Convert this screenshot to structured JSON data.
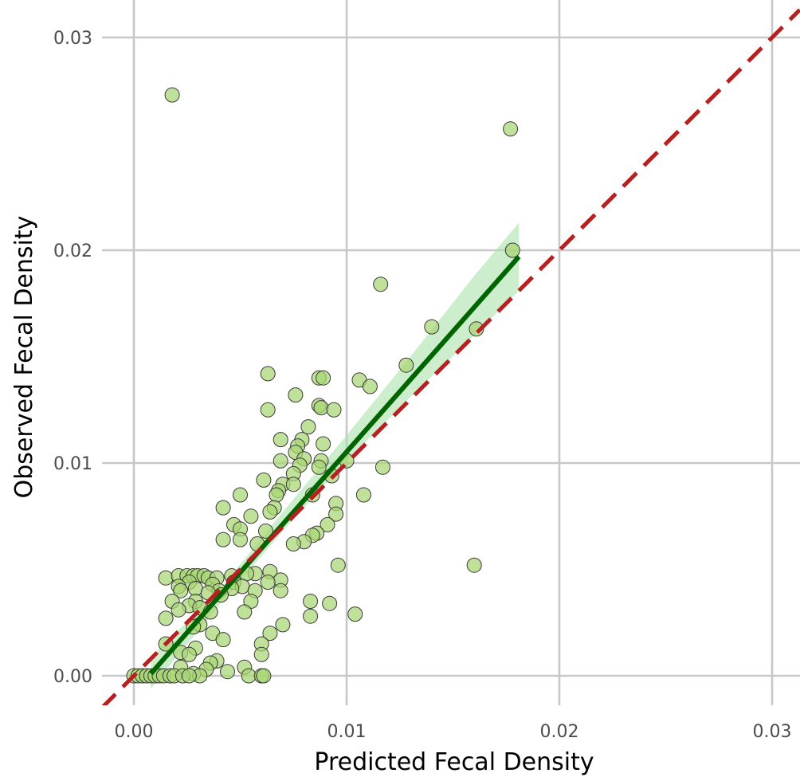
{
  "chart_data": {
    "type": "scatter",
    "title": "",
    "xlabel": "Predicted Fecal Density",
    "ylabel": "Observed Fecal Density",
    "xlim": [
      -0.0015,
      0.0313
    ],
    "ylim": [
      -0.0015,
      0.0313
    ],
    "x_ticks": [
      0.0,
      0.01,
      0.02,
      0.03
    ],
    "y_ticks": [
      0.0,
      0.01,
      0.02,
      0.03
    ],
    "x_tick_labels": [
      "0.00",
      "0.01",
      "0.02",
      "0.03"
    ],
    "y_tick_labels": [
      "0.00",
      "0.01",
      "0.02",
      "0.03"
    ],
    "grid": true,
    "colors": {
      "point_fill": "#a8d572",
      "point_stroke": "#3a3a3a",
      "fit_line": "#006400",
      "fit_band": "#a3e0a3",
      "identity_line": "#b22222",
      "grid": "#c8c8c8"
    },
    "points": [
      [
        0.0018,
        0.0273
      ],
      [
        0.0177,
        0.0257
      ],
      [
        0.0178,
        0.02
      ],
      [
        0.0116,
        0.0184
      ],
      [
        0.014,
        0.0164
      ],
      [
        0.0161,
        0.0163
      ],
      [
        0.0128,
        0.0146
      ],
      [
        0.0063,
        0.0142
      ],
      [
        0.0087,
        0.014
      ],
      [
        0.0089,
        0.014
      ],
      [
        0.0106,
        0.0139
      ],
      [
        0.0111,
        0.0136
      ],
      [
        0.0076,
        0.0132
      ],
      [
        0.0087,
        0.0127
      ],
      [
        0.0088,
        0.0126
      ],
      [
        0.0063,
        0.0125
      ],
      [
        0.0094,
        0.0125
      ],
      [
        0.0082,
        0.0117
      ],
      [
        0.0079,
        0.0111
      ],
      [
        0.0069,
        0.0111
      ],
      [
        0.0089,
        0.0109
      ],
      [
        0.0077,
        0.0108
      ],
      [
        0.0076,
        0.0105
      ],
      [
        0.008,
        0.0102
      ],
      [
        0.0069,
        0.0101
      ],
      [
        0.0088,
        0.0101
      ],
      [
        0.01,
        0.0101
      ],
      [
        0.0078,
        0.0099
      ],
      [
        0.0087,
        0.0098
      ],
      [
        0.0117,
        0.0098
      ],
      [
        0.0075,
        0.0095
      ],
      [
        0.0093,
        0.0094
      ],
      [
        0.0061,
        0.0092
      ],
      [
        0.007,
        0.009
      ],
      [
        0.0075,
        0.009
      ],
      [
        0.0068,
        0.0087
      ],
      [
        0.0067,
        0.0085
      ],
      [
        0.005,
        0.0085
      ],
      [
        0.0084,
        0.0085
      ],
      [
        0.0108,
        0.0085
      ],
      [
        0.0095,
        0.0081
      ],
      [
        0.0042,
        0.0079
      ],
      [
        0.0066,
        0.0079
      ],
      [
        0.0064,
        0.0077
      ],
      [
        0.0095,
        0.0076
      ],
      [
        0.0055,
        0.0075
      ],
      [
        0.0091,
        0.0071
      ],
      [
        0.0047,
        0.0071
      ],
      [
        0.005,
        0.0069
      ],
      [
        0.0062,
        0.0068
      ],
      [
        0.0086,
        0.0067
      ],
      [
        0.0084,
        0.0066
      ],
      [
        0.005,
        0.0064
      ],
      [
        0.0042,
        0.0064
      ],
      [
        0.008,
        0.0063
      ],
      [
        0.0058,
        0.0062
      ],
      [
        0.0075,
        0.0062
      ],
      [
        0.016,
        0.0052
      ],
      [
        0.0096,
        0.0052
      ],
      [
        0.0064,
        0.0049
      ],
      [
        0.0057,
        0.0048
      ],
      [
        0.0053,
        0.0048
      ],
      [
        0.0046,
        0.0047
      ],
      [
        0.0015,
        0.0046
      ],
      [
        0.0021,
        0.0047
      ],
      [
        0.0025,
        0.0047
      ],
      [
        0.0028,
        0.0047
      ],
      [
        0.003,
        0.0047
      ],
      [
        0.0033,
        0.0047
      ],
      [
        0.0035,
        0.0046
      ],
      [
        0.0039,
        0.0046
      ],
      [
        0.0069,
        0.0045
      ],
      [
        0.0047,
        0.0044
      ],
      [
        0.0063,
        0.0044
      ],
      [
        0.0026,
        0.0044
      ],
      [
        0.0037,
        0.0043
      ],
      [
        0.0051,
        0.0042
      ],
      [
        0.0046,
        0.0041
      ],
      [
        0.0021,
        0.0042
      ],
      [
        0.0029,
        0.0041
      ],
      [
        0.0022,
        0.004
      ],
      [
        0.0069,
        0.004
      ],
      [
        0.004,
        0.004
      ],
      [
        0.0057,
        0.004
      ],
      [
        0.0035,
        0.0039
      ],
      [
        0.0041,
        0.0038
      ],
      [
        0.0018,
        0.0035
      ],
      [
        0.0029,
        0.0035
      ],
      [
        0.0055,
        0.0035
      ],
      [
        0.0083,
        0.0035
      ],
      [
        0.0092,
        0.0034
      ],
      [
        0.0026,
        0.0033
      ],
      [
        0.0031,
        0.0032
      ],
      [
        0.0021,
        0.0031
      ],
      [
        0.0036,
        0.003
      ],
      [
        0.0052,
        0.003
      ],
      [
        0.0104,
        0.0029
      ],
      [
        0.0083,
        0.0028
      ],
      [
        0.0015,
        0.0027
      ],
      [
        0.007,
        0.0024
      ],
      [
        0.0031,
        0.0024
      ],
      [
        0.0028,
        0.0023
      ],
      [
        0.0037,
        0.002
      ],
      [
        0.0064,
        0.002
      ],
      [
        0.0042,
        0.0017
      ],
      [
        0.0015,
        0.0015
      ],
      [
        0.006,
        0.0015
      ],
      [
        0.0029,
        0.0013
      ],
      [
        0.0022,
        0.0011
      ],
      [
        0.0026,
        0.001
      ],
      [
        0.006,
        0.001
      ],
      [
        0.0039,
        0.0007
      ],
      [
        0.0036,
        0.0006
      ],
      [
        0.0022,
        0.0004
      ],
      [
        0.0052,
        0.0004
      ],
      [
        0.0034,
        0.0003
      ],
      [
        0.0044,
        0.0002
      ],
      [
        0.0028,
        0.0001
      ],
      [
        0.0031,
        0.0
      ],
      [
        0.0054,
        0.0
      ],
      [
        0.006,
        0.0
      ],
      [
        0.0061,
        0.0
      ],
      [
        0.0,
        0.0
      ],
      [
        0.0002,
        0.0
      ],
      [
        0.0004,
        0.0
      ],
      [
        0.0006,
        0.0
      ],
      [
        0.0008,
        0.0
      ],
      [
        0.001,
        0.0
      ],
      [
        0.0012,
        0.0
      ],
      [
        0.0014,
        0.0
      ],
      [
        0.0017,
        0.0
      ],
      [
        0.0019,
        0.0
      ],
      [
        0.0023,
        0.0
      ],
      [
        0.0026,
        0.0
      ]
    ],
    "fit_line": {
      "x": [
        0.0008,
        0.0181
      ],
      "y": [
        0.0001,
        0.0197
      ]
    },
    "confidence_band": {
      "x": [
        0.0008,
        0.004,
        0.007,
        0.01,
        0.013,
        0.016,
        0.0181
      ],
      "upper": [
        0.0009,
        0.004,
        0.0077,
        0.0113,
        0.015,
        0.0188,
        0.0213
      ],
      "lower": [
        -0.0006,
        0.0033,
        0.0068,
        0.0101,
        0.0131,
        0.016,
        0.0181
      ]
    },
    "identity_line": {
      "x": [
        -0.0015,
        0.0313
      ],
      "y": [
        -0.0015,
        0.0313
      ]
    }
  }
}
